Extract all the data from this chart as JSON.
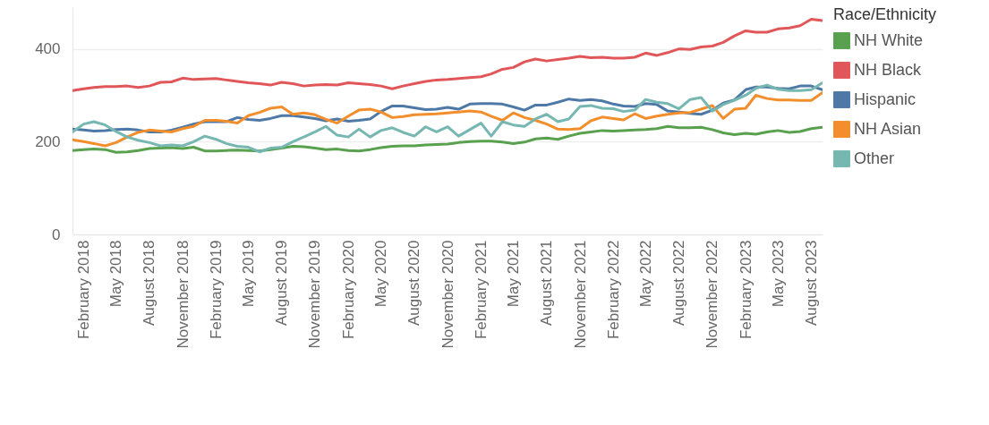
{
  "chart_data": {
    "type": "line",
    "x": [
      "2018-01",
      "2018-02",
      "2018-03",
      "2018-04",
      "2018-05",
      "2018-06",
      "2018-07",
      "2018-08",
      "2018-09",
      "2018-10",
      "2018-11",
      "2018-12",
      "2019-01",
      "2019-02",
      "2019-03",
      "2019-04",
      "2019-05",
      "2019-06",
      "2019-07",
      "2019-08",
      "2019-09",
      "2019-10",
      "2019-11",
      "2019-12",
      "2020-01",
      "2020-02",
      "2020-03",
      "2020-04",
      "2020-05",
      "2020-06",
      "2020-07",
      "2020-08",
      "2020-09",
      "2020-10",
      "2020-11",
      "2020-12",
      "2021-01",
      "2021-02",
      "2021-03",
      "2021-04",
      "2021-05",
      "2021-06",
      "2021-07",
      "2021-08",
      "2021-09",
      "2021-10",
      "2021-11",
      "2021-12",
      "2022-01",
      "2022-02",
      "2022-03",
      "2022-04",
      "2022-05",
      "2022-06",
      "2022-07",
      "2022-08",
      "2022-09",
      "2022-10",
      "2022-11",
      "2022-12",
      "2023-01",
      "2023-02",
      "2023-03",
      "2023-04",
      "2023-05",
      "2023-06",
      "2023-07",
      "2023-08",
      "2023-09"
    ],
    "series": [
      {
        "name": "NH White",
        "color": "#59a14f",
        "values": [
          181,
          183,
          184,
          183,
          177,
          178,
          181,
          185,
          186,
          187,
          185,
          188,
          180,
          180,
          181,
          182,
          181,
          180,
          183,
          186,
          190,
          189,
          186,
          183,
          184,
          181,
          180,
          183,
          187,
          190,
          191,
          191,
          193,
          194,
          195,
          198,
          200,
          201,
          201,
          199,
          196,
          199,
          206,
          208,
          205,
          212,
          218,
          221,
          224,
          223,
          224,
          225,
          226,
          228,
          233,
          230,
          230,
          231,
          226,
          219,
          215,
          218,
          216,
          221,
          224,
          220,
          222,
          228,
          231
        ]
      },
      {
        "name": "NH Black",
        "color": "#e15759",
        "values": [
          310,
          314,
          317,
          319,
          319,
          320,
          317,
          320,
          328,
          329,
          337,
          334,
          335,
          336,
          333,
          330,
          327,
          325,
          322,
          328,
          325,
          320,
          322,
          323,
          322,
          327,
          325,
          323,
          320,
          314,
          320,
          325,
          330,
          333,
          334,
          336,
          338,
          340,
          346,
          356,
          360,
          372,
          378,
          374,
          377,
          380,
          384,
          381,
          382,
          380,
          380,
          382,
          391,
          386,
          392,
          400,
          399,
          404,
          406,
          414,
          428,
          439,
          436,
          436,
          443,
          445,
          450,
          464,
          461
        ]
      },
      {
        "name": "Hispanic",
        "color": "#4e79a7",
        "values": [
          227,
          225,
          223,
          224,
          226,
          227,
          225,
          221,
          221,
          225,
          231,
          238,
          243,
          243,
          243,
          252,
          248,
          246,
          250,
          256,
          256,
          253,
          250,
          245,
          249,
          244,
          246,
          249,
          265,
          277,
          277,
          273,
          269,
          270,
          274,
          270,
          281,
          282,
          282,
          281,
          275,
          268,
          279,
          279,
          285,
          292,
          289,
          291,
          288,
          281,
          277,
          276,
          282,
          280,
          266,
          264,
          261,
          259,
          268,
          283,
          290,
          312,
          318,
          318,
          315,
          314,
          320,
          320,
          312
        ]
      },
      {
        "name": "NH Asian",
        "color": "#f28e2b",
        "values": [
          204,
          200,
          196,
          191,
          198,
          210,
          220,
          225,
          223,
          221,
          228,
          233,
          246,
          246,
          244,
          240,
          256,
          263,
          272,
          275,
          259,
          262,
          258,
          248,
          240,
          255,
          268,
          270,
          264,
          252,
          254,
          258,
          259,
          260,
          262,
          264,
          266,
          264,
          255,
          246,
          262,
          252,
          246,
          238,
          227,
          226,
          228,
          245,
          253,
          250,
          247,
          260,
          250,
          255,
          259,
          262,
          263,
          270,
          278,
          250,
          270,
          272,
          300,
          293,
          290,
          290,
          289,
          289,
          306
        ]
      },
      {
        "name": "Other",
        "color": "#76b7b2",
        "values": [
          221,
          238,
          243,
          236,
          222,
          210,
          203,
          198,
          191,
          193,
          191,
          200,
          212,
          205,
          196,
          190,
          188,
          178,
          186,
          188,
          200,
          210,
          221,
          233,
          214,
          210,
          227,
          210,
          224,
          230,
          220,
          212,
          232,
          221,
          232,
          212,
          226,
          240,
          212,
          243,
          236,
          233,
          249,
          259,
          243,
          249,
          276,
          278,
          272,
          271,
          265,
          268,
          291,
          285,
          282,
          271,
          291,
          295,
          266,
          280,
          289,
          300,
          315,
          322,
          313,
          310,
          310,
          312,
          327
        ]
      }
    ],
    "xlim": [
      "2018-01",
      "2023-09"
    ],
    "xticks": [
      {
        "value": "2018-02",
        "label": "February 2018"
      },
      {
        "value": "2018-05",
        "label": "May 2018"
      },
      {
        "value": "2018-08",
        "label": "August 2018"
      },
      {
        "value": "2018-11",
        "label": "November 2018"
      },
      {
        "value": "2019-02",
        "label": "February 2019"
      },
      {
        "value": "2019-05",
        "label": "May 2019"
      },
      {
        "value": "2019-08",
        "label": "August 2019"
      },
      {
        "value": "2019-11",
        "label": "November 2019"
      },
      {
        "value": "2020-02",
        "label": "February 2020"
      },
      {
        "value": "2020-05",
        "label": "May 2020"
      },
      {
        "value": "2020-08",
        "label": "August 2020"
      },
      {
        "value": "2020-11",
        "label": "November 2020"
      },
      {
        "value": "2021-02",
        "label": "February 2021"
      },
      {
        "value": "2021-05",
        "label": "May 2021"
      },
      {
        "value": "2021-08",
        "label": "August 2021"
      },
      {
        "value": "2021-11",
        "label": "November 2021"
      },
      {
        "value": "2022-02",
        "label": "February 2022"
      },
      {
        "value": "2022-05",
        "label": "May 2022"
      },
      {
        "value": "2022-08",
        "label": "August 2022"
      },
      {
        "value": "2022-11",
        "label": "November 2022"
      },
      {
        "value": "2023-02",
        "label": "February 2023"
      },
      {
        "value": "2023-05",
        "label": "May 2023"
      },
      {
        "value": "2023-08",
        "label": "August 2023"
      }
    ],
    "ylim": [
      0,
      490
    ],
    "yticks": [
      0,
      200,
      400
    ],
    "grid": "y",
    "legend": "right",
    "legend_title": "Race/Ethnicity",
    "marker": "none"
  }
}
